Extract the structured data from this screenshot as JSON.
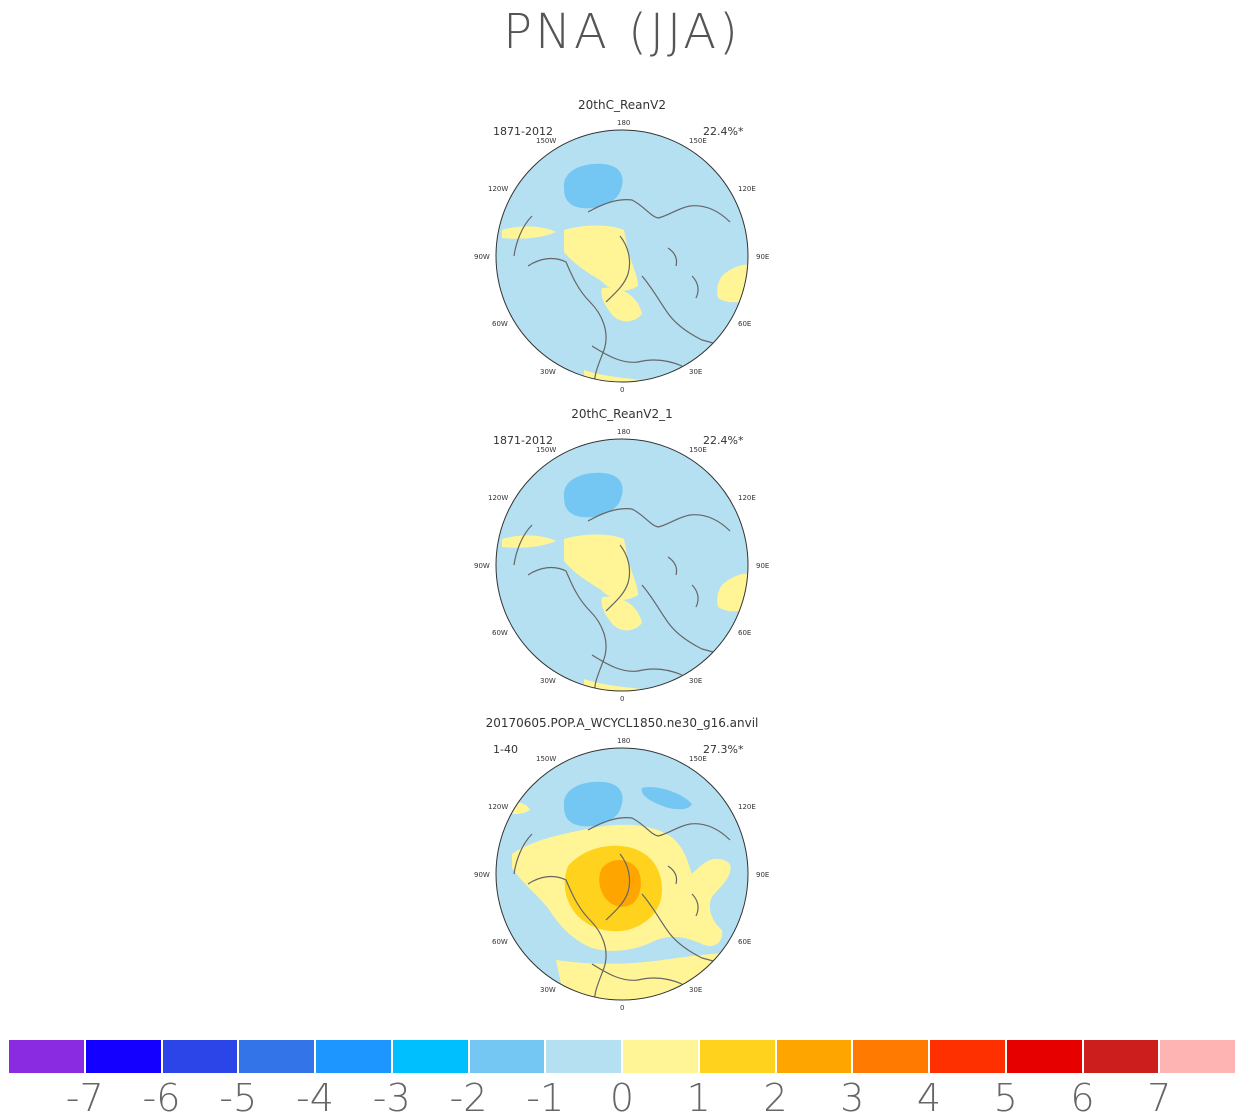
{
  "title": "PNA (JJA)",
  "panels": [
    {
      "name": "20thC_ReanV2",
      "years": "1871-2012",
      "percent": "22.4%*"
    },
    {
      "name": "20thC_ReanV2_1",
      "years": "1871-2012",
      "percent": "22.4%*"
    },
    {
      "name": "20170605.POP.A_WCYCL1850.ne30_g16.anvil",
      "years": "1-40",
      "percent": "27.3%*"
    }
  ],
  "lon_labels": {
    "top": "180",
    "tl": "150W",
    "tr": "150E",
    "ul": "120W",
    "ur": "120E",
    "l": "90W",
    "r": "90E",
    "ll": "60W",
    "lr": "60E",
    "bl": "30W",
    "br": "30E",
    "bottom": "0"
  },
  "colorbar": {
    "colors": [
      "#8a2be2",
      "#1400ff",
      "#2b45e8",
      "#3374e8",
      "#1e96ff",
      "#00bfff",
      "#74c7f2",
      "#b5e0f2",
      "#fff596",
      "#ffd21e",
      "#ffa500",
      "#ff7a00",
      "#ff3000",
      "#e60000",
      "#cd1e1e",
      "#ffb4b4"
    ],
    "labels": [
      "-7",
      "-6",
      "-5",
      "-4",
      "-3",
      "-2",
      "-1",
      "0",
      "1",
      "2",
      "3",
      "4",
      "5",
      "6",
      "7"
    ]
  },
  "map_colors": {
    "background": "#b5e0f2",
    "neg1": "#74c7f2",
    "pos1": "#fff596",
    "pos2": "#ffd21e",
    "pos3": "#ffa500",
    "coast": "#666666"
  }
}
